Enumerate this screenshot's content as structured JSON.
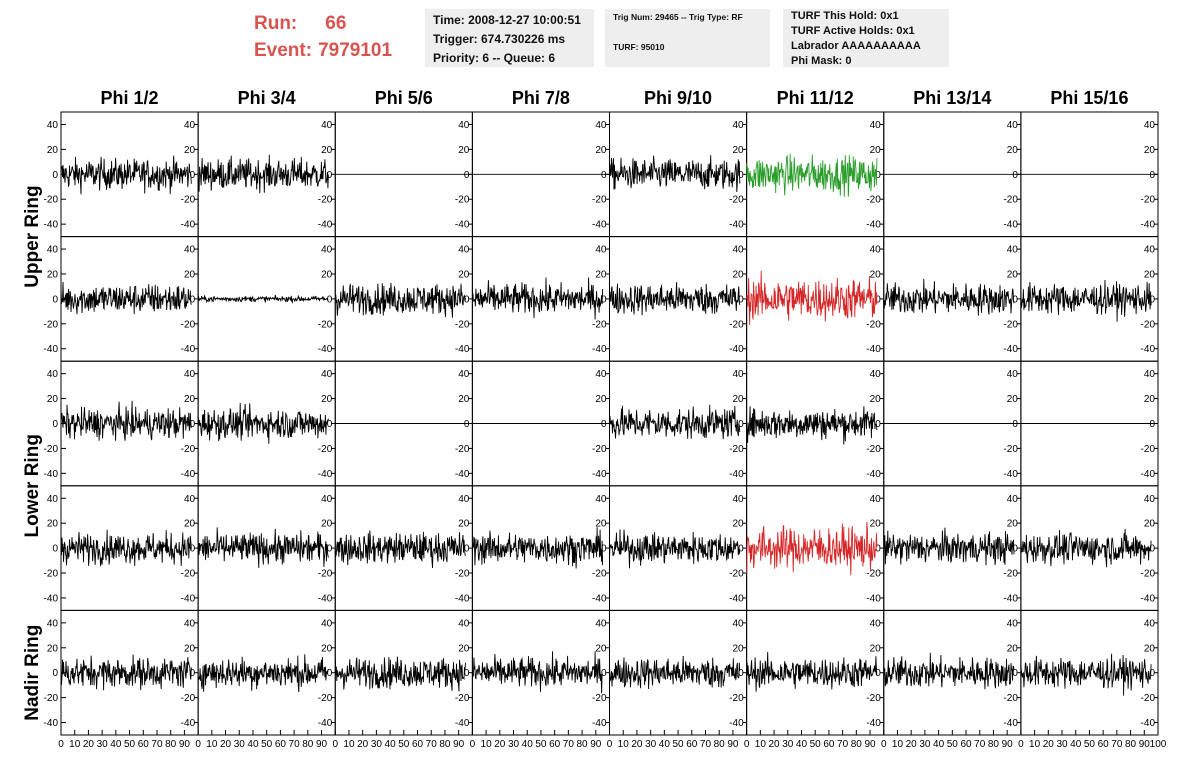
{
  "header": {
    "run_label": "Run:",
    "run_value": "66",
    "event_label": "Event:",
    "event_value": "7979101"
  },
  "info_boxes": {
    "time": "Time: 2008-12-27 10:00:51",
    "trigger": "Trigger: 674.730226 ms",
    "priority": "Priority: 6 -- Queue: 6",
    "trig_num": "Trig Num: 29465 -- Trig Type: RF",
    "turf": "TURF: 95010",
    "turf_this_hold": "TURF This Hold: 0x1",
    "turf_active_holds": "TURF Active Holds: 0x1",
    "labrador": "Labrador AAAAAAAAAA",
    "phi_mask": "Phi Mask: 0"
  },
  "chart_data": {
    "type": "line",
    "columns": [
      "Phi 1/2",
      "Phi 3/4",
      "Phi 5/6",
      "Phi 7/8",
      "Phi 9/10",
      "Phi 11/12",
      "Phi 13/14",
      "Phi 15/16"
    ],
    "rows": [
      "Upper Ring",
      "Upper Ring",
      "Lower Ring",
      "Lower Ring",
      "Nadir Ring"
    ],
    "row_labels": [
      "Upper Ring",
      "Lower Ring",
      "Nadir Ring"
    ],
    "xlim": [
      0,
      100
    ],
    "ylim": [
      -50,
      50
    ],
    "x_ticks": [
      "0",
      "10",
      "20",
      "30",
      "40",
      "50",
      "60",
      "70",
      "80",
      "90",
      "100"
    ],
    "y_ticks": [
      "-40",
      "-20",
      "0",
      "20",
      "40"
    ],
    "colors": {
      "normal": "#000000",
      "green": "#2a9d2a",
      "red": "#d62728"
    },
    "panels": [
      [
        "noise",
        "noise",
        "flat",
        "flat",
        "noise",
        "green",
        "flat",
        "flat"
      ],
      [
        "noise",
        "small",
        "noise",
        "noise",
        "noise",
        "red",
        "noise",
        "noise"
      ],
      [
        "noise",
        "noise",
        "flat",
        "flat",
        "noise",
        "noise",
        "flat",
        "flat"
      ],
      [
        "noise",
        "noise",
        "noise",
        "noise",
        "noise",
        "red",
        "noise",
        "noise"
      ],
      [
        "noise",
        "noise",
        "noise",
        "noise",
        "noise",
        "noise",
        "noise",
        "noise"
      ]
    ],
    "amplitude": {
      "noise": 22,
      "small": 4,
      "green": 26,
      "red": 30,
      "flat": 0
    }
  }
}
